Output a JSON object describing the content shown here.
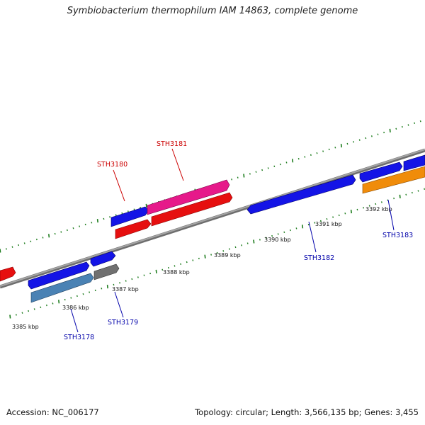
{
  "title": "Symbiobacterium thermophilum IAM 14863, complete genome",
  "footer": {
    "accession": "Accession: NC_006177",
    "summary": "Topology: circular; Length: 3,566,135 bp; Genes: 3,455"
  },
  "colors": {
    "backbone": "#8a8a8a",
    "tick": "#1e7d1e",
    "label_forward": "#cc0000",
    "label_reverse": "#0000aa",
    "blue": "#1414e6",
    "red": "#e60f0f",
    "pink": "#e6198a",
    "gray": "#707070",
    "steelblue": "#4a82b4",
    "orange": "#f08c0a"
  },
  "kbp_labels": [
    "3385 kbp",
    "3386 kbp",
    "3387 kbp",
    "3388 kbp",
    "3389 kbp",
    "3390 kbp",
    "3391 kbp",
    "3392 kbp"
  ],
  "gene_labels": {
    "STH3178": "STH3178",
    "STH3179": "STH3179",
    "STH3180": "STH3180",
    "STH3181": "STH3181",
    "STH3182": "STH3182",
    "STH3183": "STH3183"
  }
}
